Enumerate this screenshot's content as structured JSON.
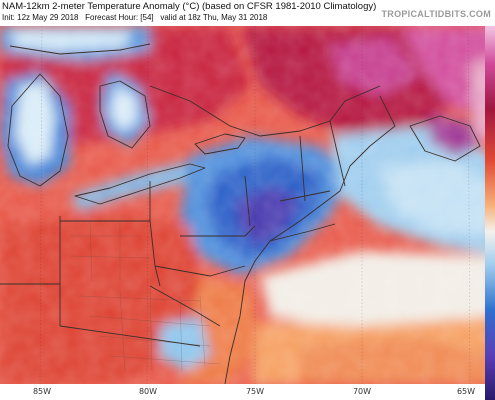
{
  "header": {
    "title": "NAM-12km 2-meter Temperature Anomaly (°C) (based on CFSR 1981-2010 Climatology)",
    "init": "Init: 12z May 29 2018",
    "forecast_hour": "Forecast Hour: [54]",
    "valid": "valid at 18z Thu, May 31 2018",
    "brand": "TROPICALTIDBITS.COM"
  },
  "longitude_ticks": [
    "85W",
    "80W",
    "75W",
    "70W",
    "65W"
  ],
  "colors": {
    "warm_deep": "#b3123a",
    "warm_mid": "#e14a35",
    "warm_light": "#f59a5a",
    "warm_pale": "#fbd9b0",
    "neutral": "#f4f1ec",
    "cool_pale": "#c9e3f4",
    "cool_light": "#6fb3e4",
    "cool_mid": "#2f6fd0",
    "cool_deep": "#5a3fb8",
    "magenta": "#d04a9a",
    "border": "#3a2f2a"
  }
}
